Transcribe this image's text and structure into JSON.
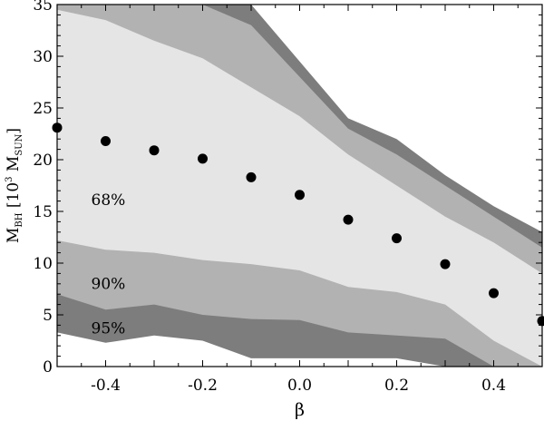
{
  "chart_data": {
    "type": "area",
    "xlabel": "β",
    "ylabel": {
      "main": "M",
      "sub": "BH",
      "bracket_open": " [10",
      "sup": "3",
      "unit_main": " M",
      "unit_sub": "SUN",
      "bracket_close": "]"
    },
    "xlim": [
      -0.5,
      0.5
    ],
    "ylim": [
      0,
      35
    ],
    "xticks": [
      -0.4,
      -0.2,
      0.0,
      0.2,
      0.4
    ],
    "xtick_labels": [
      "-0.4",
      "-0.2",
      "0.0",
      "0.2",
      "0.4"
    ],
    "yticks": [
      0,
      5,
      10,
      15,
      20,
      25,
      30,
      35
    ],
    "ytick_labels": [
      "0",
      "5",
      "10",
      "15",
      "20",
      "25",
      "30",
      "35"
    ],
    "grid": false,
    "band_x": [
      -0.5,
      -0.4,
      -0.3,
      -0.2,
      -0.1,
      0.0,
      0.1,
      0.2,
      0.3,
      0.4,
      0.5
    ],
    "bands": [
      {
        "name": "95%",
        "color": "#7d7d7d",
        "upper": [
          36.5,
          36.5,
          36.5,
          36.5,
          36.5,
          29.5,
          24.0,
          22.0,
          18.5,
          15.5,
          13.0
        ],
        "lower": [
          3.3,
          2.3,
          3.0,
          2.5,
          0.8,
          0.8,
          0.8,
          0.8,
          0.0,
          0.0,
          0.0
        ]
      },
      {
        "name": "90%",
        "color": "#b2b2b2",
        "upper": [
          36.5,
          36.5,
          36.5,
          36.5,
          33.0,
          28.0,
          23.0,
          20.5,
          17.5,
          14.5,
          11.5
        ],
        "lower": [
          7.0,
          5.5,
          6.0,
          5.0,
          4.6,
          4.5,
          3.3,
          3.0,
          2.7,
          0.0,
          0.0
        ]
      },
      {
        "name": "68%",
        "color": "#e5e5e5",
        "upper": [
          34.5,
          33.5,
          31.5,
          29.8,
          27.0,
          24.2,
          20.5,
          17.5,
          14.5,
          12.0,
          9.0
        ],
        "lower": [
          12.2,
          11.3,
          11.0,
          10.3,
          9.9,
          9.3,
          7.7,
          7.2,
          6.0,
          2.5,
          0.0
        ]
      }
    ],
    "band_labels": [
      {
        "text": "68%",
        "x": -0.43,
        "y": 15.6
      },
      {
        "text": "90%",
        "x": -0.43,
        "y": 7.5
      },
      {
        "text": "95%",
        "x": -0.43,
        "y": 3.2
      }
    ],
    "series": [
      {
        "marker": "circle",
        "color": "#000000",
        "x": [
          -0.5,
          -0.4,
          -0.3,
          -0.2,
          -0.1,
          0.0,
          0.1,
          0.2,
          0.3,
          0.4,
          0.5
        ],
        "y": [
          23.1,
          21.8,
          20.9,
          20.1,
          18.3,
          16.6,
          14.2,
          12.4,
          9.9,
          7.1,
          4.4
        ]
      }
    ]
  }
}
